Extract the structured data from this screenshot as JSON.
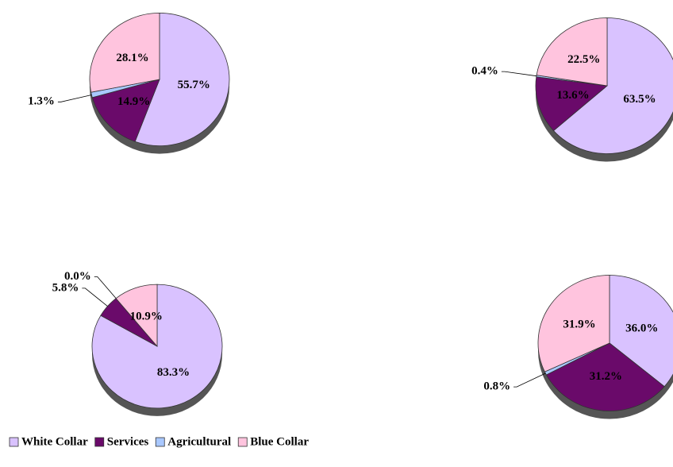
{
  "chart_data": [
    {
      "type": "pie",
      "categories": [
        "White Collar",
        "Services",
        "Agricultural",
        "Blue Collar"
      ],
      "values": [
        55.7,
        14.9,
        1.3,
        28.1
      ],
      "value_labels": [
        "55.7%",
        "14.9%",
        "1.3%",
        "28.1%"
      ],
      "colors": [
        "#d9c2ff",
        "#6a0a6a",
        "#a9c8ff",
        "#ffc4de"
      ],
      "legend": "bottom"
    },
    {
      "type": "pie",
      "categories": [
        "White Collar",
        "Services",
        "Agricultural",
        "Blue Collar"
      ],
      "values": [
        63.5,
        13.6,
        0.4,
        22.5
      ],
      "value_labels": [
        "63.5%",
        "13.6%",
        "0.4%",
        "22.5%"
      ],
      "colors": [
        "#d9c2ff",
        "#6a0a6a",
        "#a9c8ff",
        "#ffc4de"
      ]
    },
    {
      "type": "pie",
      "categories": [
        "White Collar",
        "Services",
        "Agricultural",
        "Blue Collar"
      ],
      "values": [
        83.3,
        5.8,
        0.0,
        10.9
      ],
      "value_labels": [
        "83.3%",
        "5.8%",
        "0.0%",
        "10.9%"
      ],
      "colors": [
        "#d9c2ff",
        "#6a0a6a",
        "#a9c8ff",
        "#ffc4de"
      ]
    },
    {
      "type": "pie",
      "categories": [
        "White Collar",
        "Services",
        "Agricultural",
        "Blue Collar"
      ],
      "values": [
        36.0,
        31.2,
        0.8,
        31.9
      ],
      "value_labels": [
        "36.0%",
        "31.2%",
        "0.8%",
        "31.9%"
      ],
      "colors": [
        "#d9c2ff",
        "#6a0a6a",
        "#a9c8ff",
        "#ffc4de"
      ]
    }
  ]
}
